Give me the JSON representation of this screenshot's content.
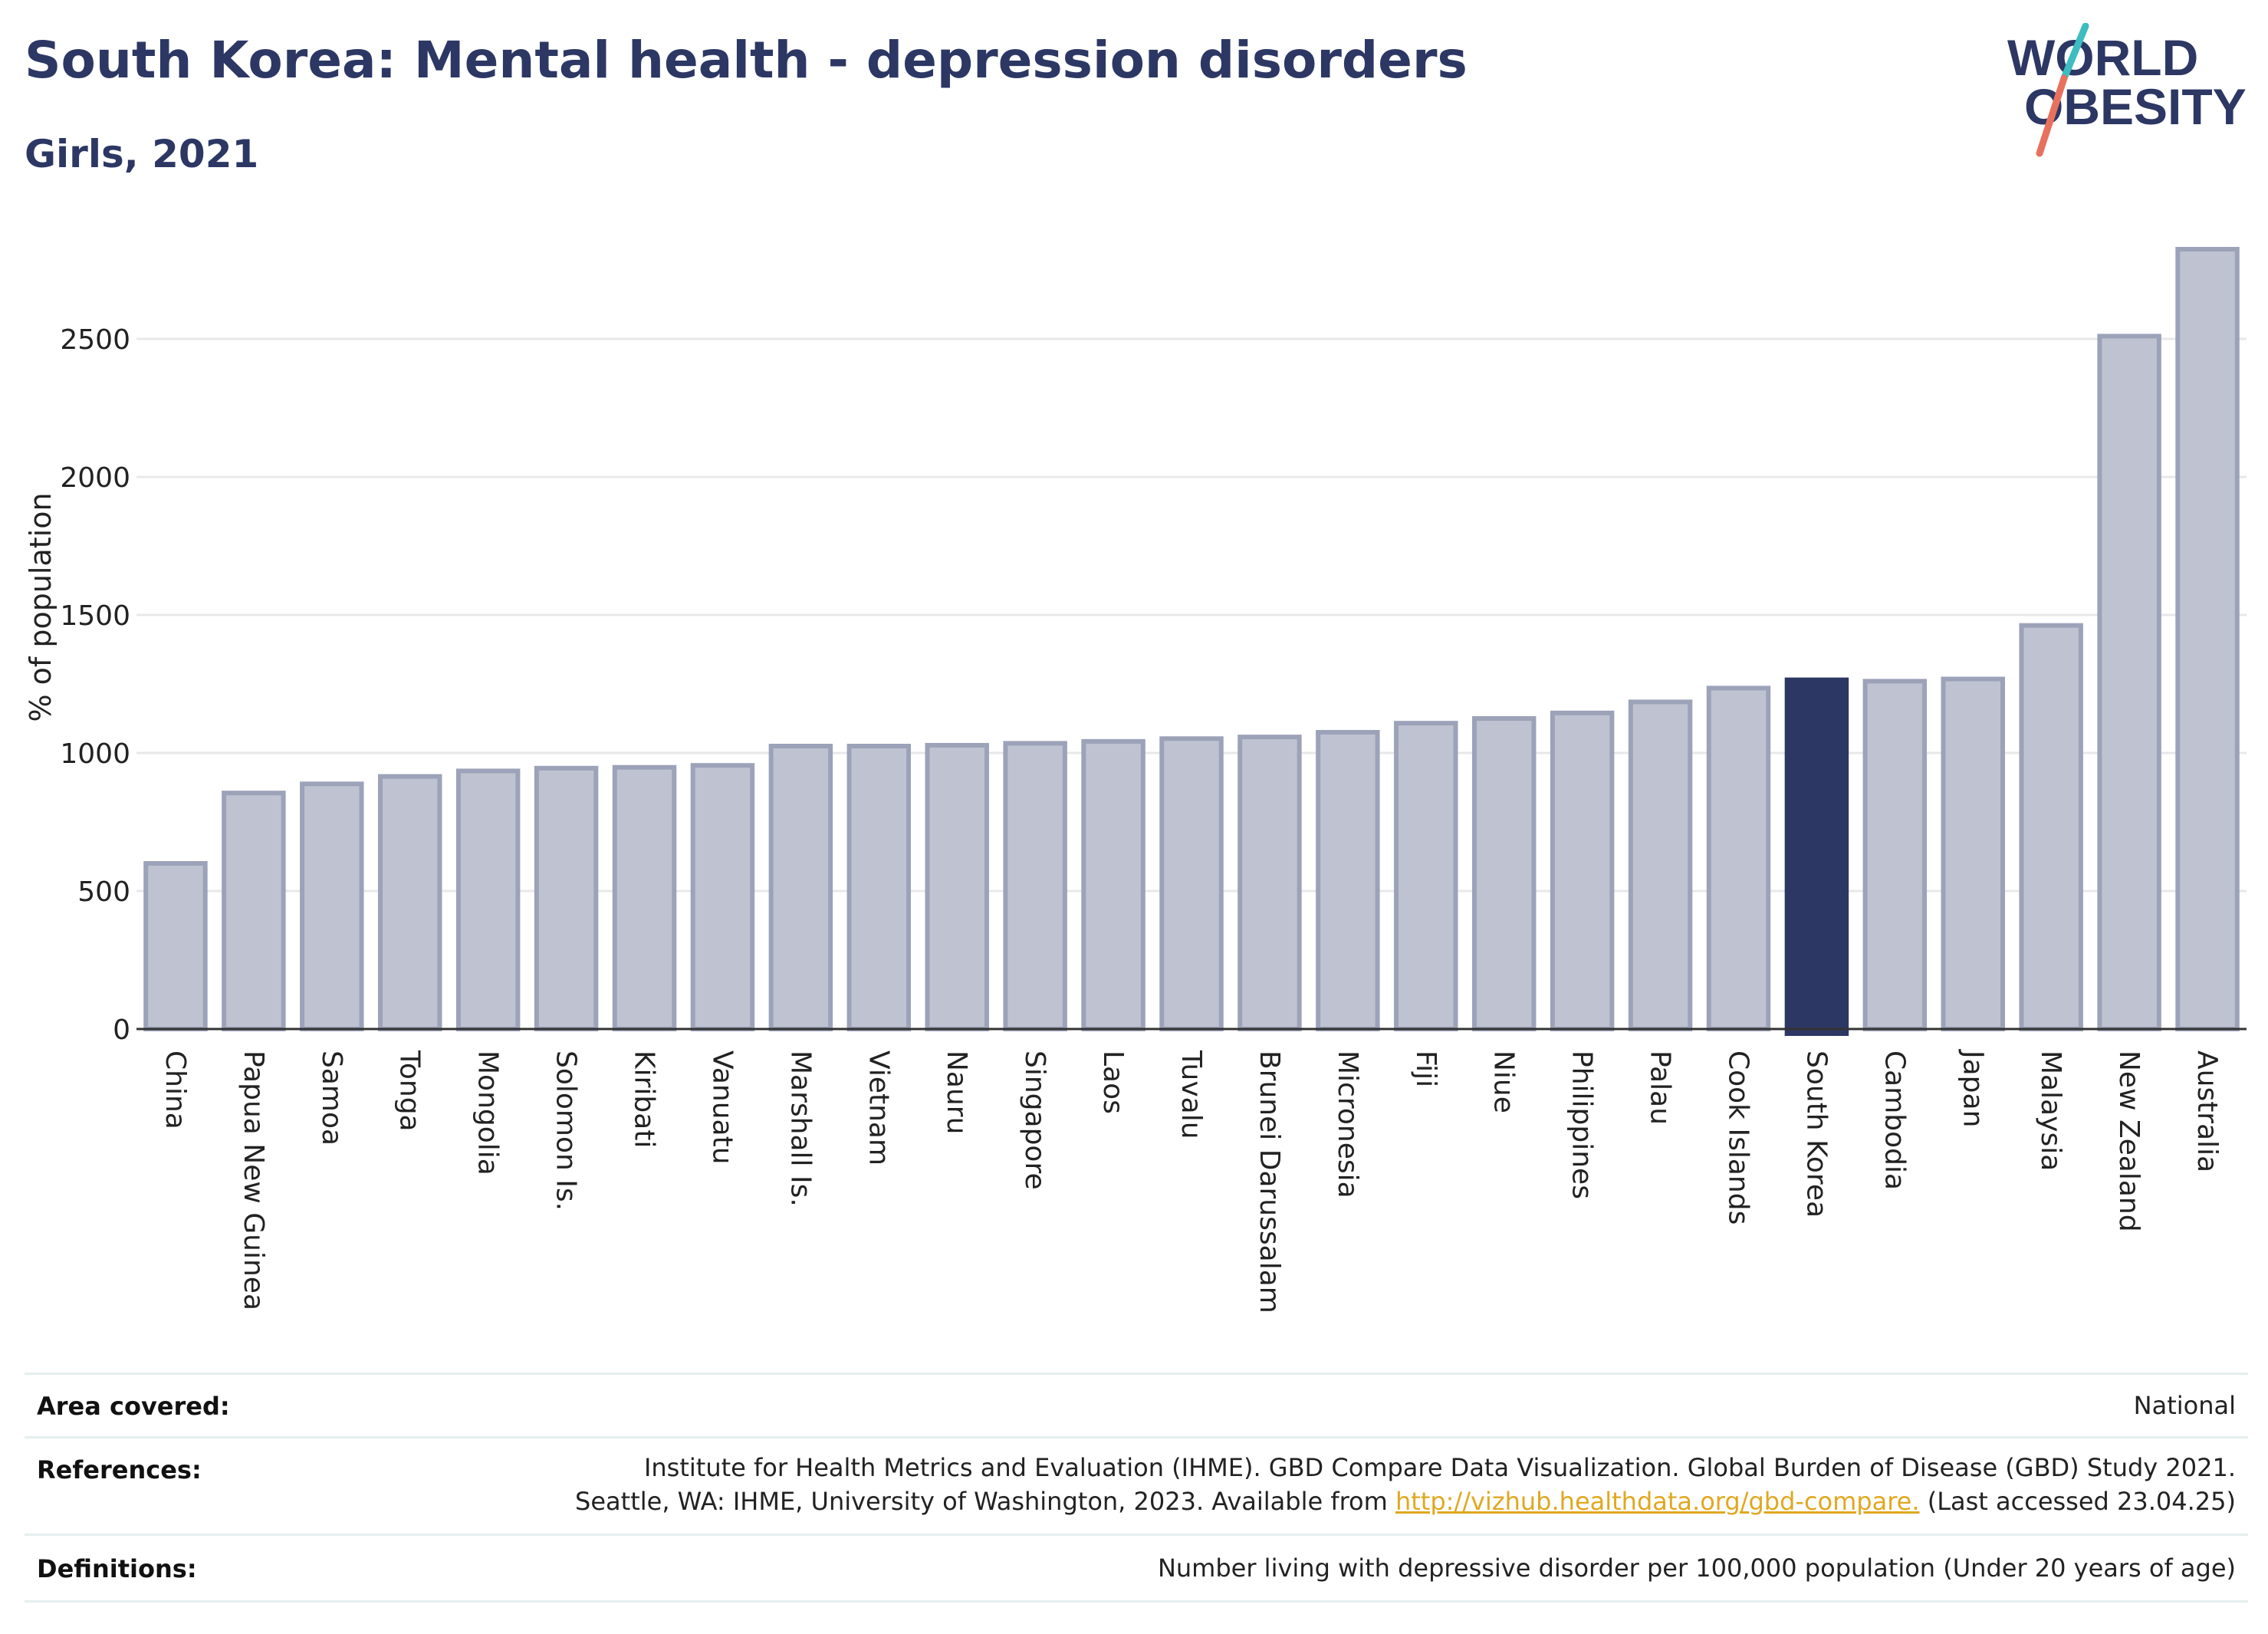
{
  "header": {
    "title": "South Korea: Mental health - depression disorders",
    "subtitle": "Girls, 2021"
  },
  "logo": {
    "line1": "WORLD",
    "line2": "OBESITY",
    "colors": {
      "text": "#2c3764",
      "slash_top": "#3dbdbf",
      "slash_bottom": "#e8715e"
    }
  },
  "colors": {
    "bar": "#bfc3d1",
    "bar_border": "#9ca2b8",
    "highlight": "#2c3764",
    "grid": "#e8e8e8",
    "axis": "#333333"
  },
  "chart_data": {
    "type": "bar",
    "title": "",
    "xlabel": "",
    "ylabel": "% of population",
    "ylim": [
      0,
      2850
    ],
    "yticks": [
      0,
      500,
      1000,
      1500,
      2000,
      2500
    ],
    "grid": true,
    "highlight": "South Korea",
    "categories": [
      "China",
      "Papua New Guinea",
      "Samoa",
      "Tonga",
      "Mongolia",
      "Solomon Is.",
      "Kiribati",
      "Vanuatu",
      "Marshall Is.",
      "Vietnam",
      "Nauru",
      "Singapore",
      "Laos",
      "Tuvalu",
      "Brunei Darussalam",
      "Micronesia",
      "Fiji",
      "Niue",
      "Philippines",
      "Palau",
      "Cook Islands",
      "South Korea",
      "Cambodia",
      "Japan",
      "Malaysia",
      "New Zealand",
      "Australia"
    ],
    "values": [
      600,
      855,
      888,
      915,
      935,
      945,
      948,
      955,
      1025,
      1025,
      1028,
      1035,
      1042,
      1052,
      1058,
      1075,
      1108,
      1125,
      1145,
      1185,
      1235,
      1265,
      1260,
      1268,
      1462,
      2510,
      2825
    ]
  },
  "info": {
    "area_label": "Area covered:",
    "area_value": "National",
    "references_label": "References:",
    "references_line1": "Institute for Health Metrics and Evaluation (IHME). GBD Compare Data Visualization. Global Burden of Disease (GBD) Study 2021.",
    "references_line2_pre": "Seattle, WA: IHME, University of Washington, 2023. Available from ",
    "references_link": "http://vizhub.healthdata.org/gbd-compare.",
    "references_line2_post": " (Last accessed 23.04.25)",
    "definitions_label": "Definitions:",
    "definitions_value": "Number living with depressive disorder per 100,000 population (Under 20 years of age)"
  }
}
